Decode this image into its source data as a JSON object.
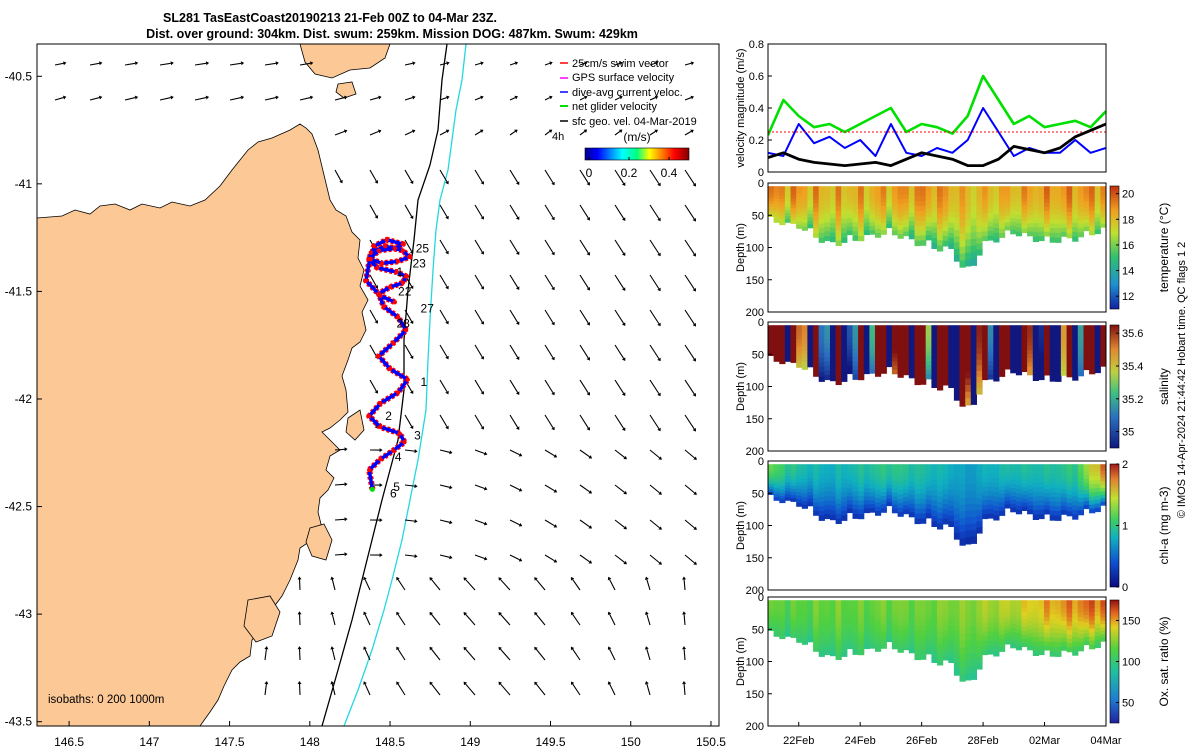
{
  "title": {
    "line1": "SL281 TasEastCoast20190213 21-Feb 00Z to 04-Mar 23Z.",
    "line2": "Dist. over ground: 304km. Dist. swum: 259km. Mission DOG: 487km. Swum: 429km"
  },
  "colors": {
    "land": "#fbc896",
    "isobath_200": "#000000",
    "isobath_1000": "#22d8e0",
    "track_red": "#ff0000",
    "track_blue": "#0000ff",
    "green": "#00e000",
    "magenta": "#ff00ff",
    "black": "#000000"
  },
  "chart_data": [
    {
      "type": "map",
      "name": "track-map",
      "xlim": [
        146.3,
        150.55
      ],
      "ylim": [
        -43.52,
        -40.35
      ],
      "xticks": [
        "146.5",
        "147",
        "147.5",
        "148",
        "148.5",
        "149",
        "149.5",
        "150",
        "150.5"
      ],
      "xtick_values": [
        146.5,
        147,
        147.5,
        148,
        148.5,
        149,
        149.5,
        150,
        150.5
      ],
      "yticks": [
        "-40.5",
        "-41",
        "-41.5",
        "-42",
        "-42.5",
        "-43",
        "-43.5"
      ],
      "ytick_values": [
        -40.5,
        -41,
        -41.5,
        -42,
        -42.5,
        -43,
        -43.5
      ],
      "legend": [
        {
          "label": "25cm/s swim vector",
          "color": "#ff0000"
        },
        {
          "label": "GPS surface velocity",
          "color": "#ff00ff"
        },
        {
          "label": "dive-avg current veloc.",
          "color": "#0000ff"
        },
        {
          "label": "net glider velocity",
          "color": "#00e000"
        },
        {
          "label": "sfc geo. vel. 04-Mar-2019",
          "color": "#000000"
        }
      ],
      "scale_label": "4h",
      "colorbar": {
        "label": "(m/s)",
        "ticks": [
          "0",
          "0.2",
          "0.4"
        ],
        "tick_values": [
          0,
          0.2,
          0.4
        ],
        "range": [
          -0.02,
          0.5
        ]
      },
      "isobath_label": "isobaths: 0   200  1000m",
      "day_labels": [
        {
          "text": "25",
          "lon": 148.66,
          "lat": -41.3
        },
        {
          "text": "23",
          "lon": 148.64,
          "lat": -41.37
        },
        {
          "text": "1",
          "lon": 148.54,
          "lat": -41.41
        },
        {
          "text": "22",
          "lon": 148.55,
          "lat": -41.5
        },
        {
          "text": "27",
          "lon": 148.69,
          "lat": -41.58
        },
        {
          "text": "28",
          "lon": 148.54,
          "lat": -41.65
        },
        {
          "text": "1",
          "lon": 148.69,
          "lat": -41.92
        },
        {
          "text": "2",
          "lon": 148.47,
          "lat": -42.08
        },
        {
          "text": "3",
          "lon": 148.65,
          "lat": -42.17
        },
        {
          "text": "4",
          "lon": 148.53,
          "lat": -42.27
        },
        {
          "text": "5",
          "lon": 148.52,
          "lat": -42.41
        },
        {
          "text": "6",
          "lon": 148.5,
          "lat": -42.44
        }
      ],
      "track": {
        "lon": [
          148.39,
          148.37,
          148.44,
          148.52,
          148.59,
          148.56,
          148.44,
          148.37,
          148.44,
          148.55,
          148.61,
          148.5,
          148.43,
          148.52,
          148.6,
          148.55,
          148.46,
          148.43,
          148.5,
          148.58,
          148.6,
          148.54,
          148.42,
          148.37,
          148.43,
          148.53,
          148.58,
          148.48,
          148.4,
          148.38,
          148.45,
          148.55,
          148.62,
          148.58,
          148.47,
          148.38,
          148.35,
          148.44,
          148.53
        ],
        "lat": [
          -42.42,
          -42.33,
          -42.28,
          -42.24,
          -42.2,
          -42.16,
          -42.13,
          -42.08,
          -42.02,
          -41.97,
          -41.91,
          -41.86,
          -41.8,
          -41.74,
          -41.68,
          -41.62,
          -41.57,
          -41.51,
          -41.48,
          -41.46,
          -41.43,
          -41.41,
          -41.39,
          -41.35,
          -41.31,
          -41.3,
          -41.28,
          -41.26,
          -41.29,
          -41.35,
          -41.37,
          -41.36,
          -41.34,
          -41.31,
          -41.29,
          -41.32,
          -41.45,
          -41.52,
          -41.55
        ]
      }
    },
    {
      "type": "line",
      "name": "velocity-magnitude",
      "ylabel": "velocity magnitude (m/s)",
      "ylim": [
        0,
        0.8
      ],
      "yticks": [
        "0",
        "0.2",
        "0.4",
        "0.6",
        "0.8"
      ],
      "ytick_values": [
        0,
        0.2,
        0.4,
        0.6,
        0.8
      ],
      "xlim": [
        21.0,
        32.0
      ],
      "x": [
        21.0,
        21.5,
        22.0,
        22.5,
        23.0,
        23.5,
        24.0,
        24.5,
        25.0,
        25.5,
        26.0,
        26.5,
        27.0,
        27.5,
        28.0,
        28.5,
        29.0,
        29.5,
        30.0,
        30.5,
        31.0,
        31.5,
        32.0
      ],
      "series": [
        {
          "name": "net glider velocity",
          "color": "#00e000",
          "values": [
            0.23,
            0.45,
            0.35,
            0.28,
            0.3,
            0.25,
            0.3,
            0.35,
            0.4,
            0.25,
            0.3,
            0.28,
            0.24,
            0.35,
            0.6,
            0.45,
            0.3,
            0.35,
            0.28,
            0.3,
            0.32,
            0.28,
            0.38
          ]
        },
        {
          "name": "dive-avg current veloc.",
          "color": "#0000ff",
          "values": [
            0.12,
            0.1,
            0.3,
            0.18,
            0.22,
            0.15,
            0.2,
            0.1,
            0.3,
            0.12,
            0.1,
            0.15,
            0.12,
            0.2,
            0.4,
            0.25,
            0.1,
            0.15,
            0.12,
            0.12,
            0.2,
            0.12,
            0.15
          ]
        },
        {
          "name": "25cm/s swim vector",
          "color": "#ff0000",
          "values": [
            0.25,
            0.25,
            0.25,
            0.25,
            0.25,
            0.25,
            0.25,
            0.25,
            0.25,
            0.25,
            0.25,
            0.25,
            0.25,
            0.25,
            0.25,
            0.25,
            0.25,
            0.25,
            0.25,
            0.25,
            0.25,
            0.25,
            0.25
          ]
        },
        {
          "name": "sfc geo. vel.",
          "color": "#000000",
          "values": [
            0.09,
            0.12,
            0.08,
            0.06,
            0.05,
            0.04,
            0.05,
            0.06,
            0.04,
            0.08,
            0.12,
            0.1,
            0.08,
            0.04,
            0.04,
            0.08,
            0.16,
            0.14,
            0.12,
            0.15,
            0.22,
            0.26,
            0.3
          ]
        }
      ]
    },
    {
      "type": "heatmap",
      "name": "temperature-section",
      "ylabel": "Depth (m)",
      "clabel": "temperature (°C)",
      "ylim": [
        0,
        200
      ],
      "yticks": [
        "0",
        "50",
        "100",
        "150",
        "200"
      ],
      "ytick_values": [
        0,
        50,
        100,
        150,
        200
      ],
      "cticks": [
        "12",
        "14",
        "16",
        "18",
        "20"
      ],
      "ctick_values": [
        12,
        14,
        16,
        18,
        20
      ],
      "crange": [
        11,
        20.6
      ],
      "x": [
        21.0,
        22.0,
        23.0,
        24.0,
        25.0,
        26.0,
        27.0,
        27.5,
        28.0,
        29.0,
        30.0,
        31.0,
        32.0
      ],
      "max_depth": [
        60,
        70,
        100,
        90,
        80,
        100,
        110,
        150,
        100,
        80,
        95,
        90,
        75
      ],
      "surface_value": [
        19.0,
        18.8,
        18.2,
        18.4,
        18.6,
        19.0,
        18.6,
        18.0,
        18.2,
        18.4,
        18.8,
        18.9,
        19.0
      ],
      "bottom_value": [
        16.5,
        16.0,
        15.0,
        15.2,
        15.5,
        14.8,
        14.5,
        14.0,
        14.8,
        15.5,
        15.2,
        15.5,
        16.0
      ]
    },
    {
      "type": "heatmap",
      "name": "salinity-section",
      "ylabel": "Depth (m)",
      "clabel": "salinity",
      "ylim": [
        0,
        200
      ],
      "yticks": [
        "0",
        "50",
        "100",
        "150",
        "200"
      ],
      "ytick_values": [
        0,
        50,
        100,
        150,
        200
      ],
      "cticks": [
        "35",
        "35.2",
        "35.4",
        "35.6"
      ],
      "ctick_values": [
        35,
        35.2,
        35.4,
        35.6
      ],
      "crange": [
        34.9,
        35.65
      ],
      "x": [
        21.0,
        22.0,
        23.0,
        24.0,
        25.0,
        26.0,
        27.0,
        27.5,
        28.0,
        29.0,
        30.0,
        31.0,
        32.0
      ],
      "max_depth": [
        60,
        70,
        100,
        90,
        80,
        100,
        110,
        150,
        100,
        80,
        95,
        90,
        75
      ],
      "surface_value": [
        35.5,
        35.45,
        35.55,
        35.5,
        35.45,
        35.55,
        35.6,
        35.62,
        35.55,
        35.5,
        35.5,
        35.45,
        35.4
      ],
      "bottom_value": [
        35.35,
        35.3,
        35.32,
        35.35,
        35.3,
        35.35,
        35.35,
        35.3,
        35.35,
        35.35,
        35.35,
        35.35,
        35.3
      ]
    },
    {
      "type": "heatmap",
      "name": "chlorophyll-section",
      "ylabel": "Depth (m)",
      "clabel": "chl-a (mg m-3)",
      "ylim": [
        0,
        200
      ],
      "yticks": [
        "0",
        "50",
        "100",
        "150",
        "200"
      ],
      "ytick_values": [
        0,
        50,
        100,
        150,
        200
      ],
      "cticks": [
        "0",
        "1",
        "2"
      ],
      "ctick_values": [
        0,
        1,
        2
      ],
      "crange": [
        0,
        2
      ],
      "x": [
        21.0,
        22.0,
        23.0,
        24.0,
        25.0,
        26.0,
        27.0,
        27.5,
        28.0,
        29.0,
        30.0,
        31.0,
        32.0
      ],
      "max_depth": [
        60,
        70,
        100,
        90,
        80,
        100,
        110,
        150,
        100,
        80,
        95,
        90,
        75
      ],
      "surface_value": [
        1.2,
        0.9,
        0.8,
        0.9,
        1.0,
        0.9,
        0.8,
        0.7,
        0.8,
        0.9,
        0.9,
        1.0,
        1.9
      ],
      "bottom_value": [
        0.3,
        0.2,
        0.2,
        0.2,
        0.25,
        0.2,
        0.2,
        0.15,
        0.2,
        0.2,
        0.2,
        0.25,
        0.3
      ]
    },
    {
      "type": "heatmap",
      "name": "oxygen-saturation-section",
      "ylabel": "Depth (m)",
      "clabel": "Ox. sat. ratio (%)",
      "ylim": [
        0,
        200
      ],
      "yticks": [
        "0",
        "50",
        "100",
        "150",
        "200"
      ],
      "ytick_values": [
        0,
        50,
        100,
        150,
        200
      ],
      "cticks": [
        "50",
        "100",
        "150"
      ],
      "ctick_values": [
        50,
        100,
        150
      ],
      "crange": [
        25,
        175
      ],
      "xticks": [
        "22Feb",
        "24Feb",
        "26Feb",
        "28Feb",
        "02Mar",
        "04Mar"
      ],
      "xtick_values": [
        22,
        24,
        26,
        28,
        30,
        32
      ],
      "x": [
        21.0,
        22.0,
        23.0,
        24.0,
        25.0,
        26.0,
        27.0,
        27.5,
        28.0,
        29.0,
        30.0,
        31.0,
        32.0
      ],
      "max_depth": [
        60,
        70,
        100,
        90,
        80,
        100,
        110,
        150,
        100,
        80,
        95,
        90,
        75
      ],
      "surface_value": [
        118,
        116,
        120,
        118,
        122,
        120,
        125,
        124,
        130,
        135,
        148,
        155,
        162
      ],
      "bottom_value": [
        100,
        98,
        96,
        98,
        100,
        98,
        95,
        92,
        96,
        98,
        100,
        102,
        105
      ]
    }
  ],
  "footer_credit": "© IMOS 14-Apr-2024 21:44:42 Hobart time. QC flags 1  2"
}
